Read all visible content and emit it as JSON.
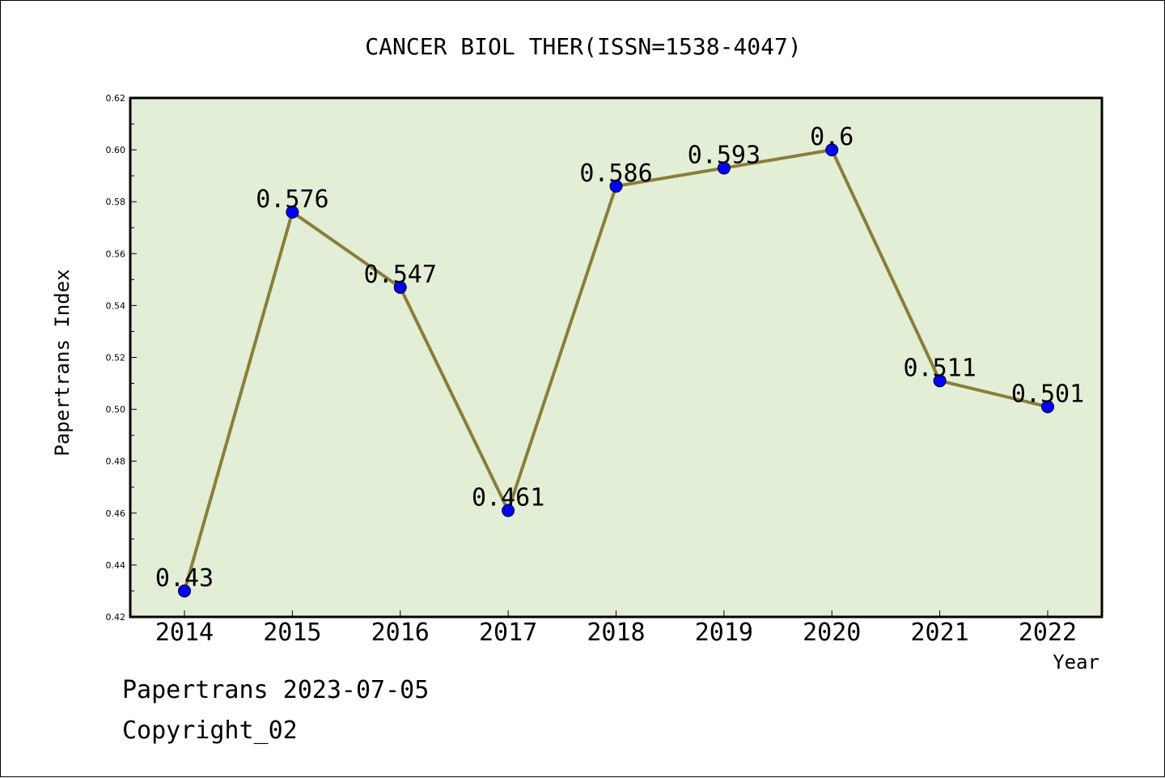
{
  "chart_data": {
    "type": "line",
    "title": "CANCER BIOL THER(ISSN=1538-4047)",
    "xlabel": "Year",
    "ylabel": "Papertrans Index",
    "categories": [
      "2014",
      "2015",
      "2016",
      "2017",
      "2018",
      "2019",
      "2020",
      "2021",
      "2022"
    ],
    "series": [
      {
        "values": [
          0.43,
          0.576,
          0.547,
          0.461,
          0.586,
          0.593,
          0.6,
          0.511,
          0.501
        ],
        "labels": [
          "0.43",
          "0.576",
          "0.547",
          "0.461",
          "0.586",
          "0.593",
          "0.6",
          "0.511",
          "0.501"
        ]
      }
    ],
    "ylim": [
      0.42,
      0.62
    ],
    "yticks": [
      "0.42",
      "0.44",
      "0.46",
      "0.48",
      "0.50",
      "0.52",
      "0.54",
      "0.56",
      "0.58",
      "0.60",
      "0.62"
    ],
    "grid": false,
    "legend": "none",
    "colors": {
      "plot_background": "#e2efd6",
      "line": "#8b7d3a",
      "marker": "#0000ff",
      "axes": "#000000"
    }
  },
  "footer": {
    "line1": "Papertrans 2023-07-05",
    "line2": "Copyright_02"
  }
}
